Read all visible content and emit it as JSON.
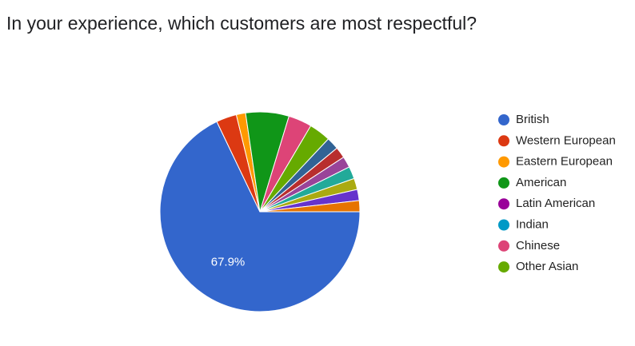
{
  "chart_data": {
    "type": "pie",
    "title": "In your experience, which customers are most respectful?",
    "categories": [
      "British",
      "Western European",
      "Eastern European",
      "American",
      "Latin American",
      "Indian",
      "Chinese",
      "Other Asian",
      null,
      null,
      null,
      null,
      null,
      null,
      null
    ],
    "values": [
      67.9,
      3.3,
      1.5,
      7,
      0,
      0,
      3.8,
      3.5,
      2.0,
      1.8,
      1.8,
      2.0,
      1.8,
      1.8,
      1.8
    ],
    "value_labels": [
      "67.9%",
      null,
      null,
      null,
      null,
      null,
      null,
      null,
      null,
      null,
      null,
      null,
      null,
      null,
      null
    ],
    "colors": [
      "#3366cc",
      "#dc3912",
      "#ff9900",
      "#109618",
      "#990099",
      "#0099c6",
      "#dd4477",
      "#66aa00",
      "#316395",
      "#b82e2e",
      "#994499",
      "#22aa99",
      "#aaaa11",
      "#6633cc",
      "#e67300"
    ],
    "legend": "right"
  }
}
